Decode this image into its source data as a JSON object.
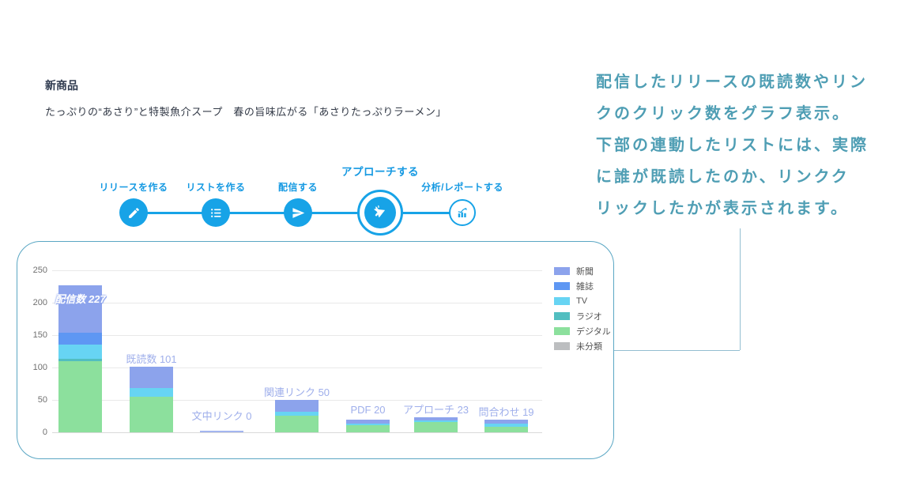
{
  "header": {
    "title": "新商品",
    "subtitle": "たっぷりの“あさり”と特製魚介スープ　春の旨味広がる「あさりたっぷりラーメン」"
  },
  "stepper": {
    "steps": [
      {
        "label": "リリースを作る",
        "icon": "pencil-icon",
        "state": "done"
      },
      {
        "label": "リストを作る",
        "icon": "list-icon",
        "state": "done"
      },
      {
        "label": "配信する",
        "icon": "paper-plane-icon",
        "state": "done"
      },
      {
        "label": "アプローチする",
        "icon": "megaphone-icon",
        "state": "active"
      },
      {
        "label": "分析/レポートする",
        "icon": "analytics-icon",
        "state": "upcoming"
      }
    ]
  },
  "chart_data": {
    "type": "bar",
    "stacked": true,
    "categories": [
      "配信数",
      "既読数",
      "文中リンク",
      "関連リンク",
      "PDF",
      "アプローチ",
      "問合わせ"
    ],
    "totals": [
      227,
      101,
      0,
      50,
      20,
      23,
      19
    ],
    "bar_labels": [
      "配信数 227",
      "既読数 101",
      "文中リンク 0",
      "関連リンク 50",
      "PDF 20",
      "アプローチ 23",
      "問合わせ 19"
    ],
    "series": [
      {
        "name": "新聞",
        "color": "#8ca3ec",
        "values": [
          73,
          33,
          0,
          18,
          6,
          5,
          6
        ]
      },
      {
        "name": "雑誌",
        "color": "#5e97f3",
        "values": [
          19,
          0,
          0,
          0,
          0,
          0,
          0
        ]
      },
      {
        "name": "TV",
        "color": "#67d4f3",
        "values": [
          22,
          13,
          0,
          6,
          3,
          2,
          4
        ]
      },
      {
        "name": "ラジオ",
        "color": "#52bec0",
        "values": [
          3,
          0,
          0,
          0,
          0,
          0,
          0
        ]
      },
      {
        "name": "デジタル",
        "color": "#8ce09d",
        "values": [
          110,
          55,
          0,
          26,
          11,
          16,
          9
        ]
      },
      {
        "name": "未分類",
        "color": "#bcbec0",
        "values": [
          0,
          0,
          0,
          0,
          0,
          0,
          0
        ]
      }
    ],
    "y_ticks": [
      0,
      50,
      100,
      150,
      200,
      250
    ],
    "ylim": [
      0,
      250
    ],
    "grid": true,
    "legend_position": "right"
  },
  "description": {
    "lines": [
      "配信したリリースの既読数やリン",
      "クのクリック数をグラフ表示。",
      "下部の連動したリストには、実際",
      "に誰が既読したのか、リンクク",
      "リックしたかが表示されます。"
    ]
  },
  "colors": {
    "stepper_blue": "#17a3e7",
    "panel_border": "#5ba7c4",
    "callout_line": "#93bed1",
    "description_text": "#4f9eb4",
    "bar_label_text": "#9fafeb",
    "title_text": "#2e3a4f"
  }
}
